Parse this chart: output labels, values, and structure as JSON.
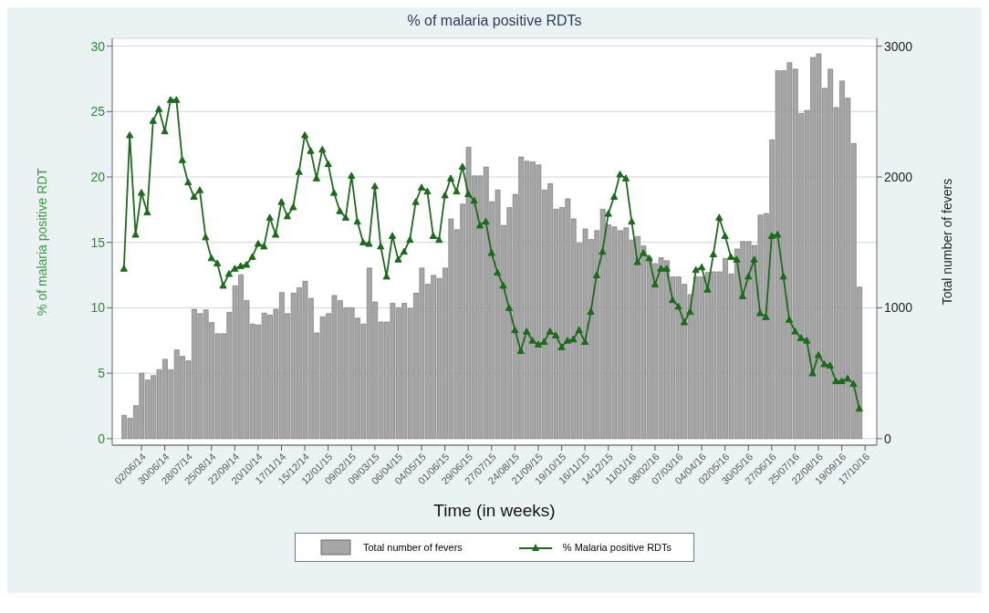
{
  "chart_data": {
    "type": "bar",
    "title": "% of malaria positive RDTs",
    "xlabel": "Time (in weeks)",
    "ylabel": "% of malaria positive RDT",
    "y2label": "Total number of fevers",
    "x": [
      "2014-05-12",
      "2014-05-19",
      "2014-05-26",
      "2014-06-02",
      "2014-06-09",
      "2014-06-16",
      "2014-06-23",
      "2014-06-30",
      "2014-07-07",
      "2014-07-14",
      "2014-07-21",
      "2014-07-28",
      "2014-08-04",
      "2014-08-11",
      "2014-08-18",
      "2014-08-25",
      "2014-09-01",
      "2014-09-08",
      "2014-09-15",
      "2014-09-22",
      "2014-09-29",
      "2014-10-06",
      "2014-10-13",
      "2014-10-20",
      "2014-10-27",
      "2014-11-03",
      "2014-11-10",
      "2014-11-17",
      "2014-11-24",
      "2014-12-01",
      "2014-12-08",
      "2014-12-15",
      "2014-12-22",
      "2014-12-29",
      "2015-01-05",
      "2015-01-12",
      "2015-01-19",
      "2015-01-26",
      "2015-02-02",
      "2015-02-09",
      "2015-02-16",
      "2015-02-23",
      "2015-03-02",
      "2015-03-09",
      "2015-03-16",
      "2015-03-23",
      "2015-03-30",
      "2015-04-06",
      "2015-04-13",
      "2015-04-20",
      "2015-04-27",
      "2015-05-04",
      "2015-05-11",
      "2015-05-18",
      "2015-05-25",
      "2015-06-01",
      "2015-06-08",
      "2015-06-15",
      "2015-06-22",
      "2015-06-29",
      "2015-07-06",
      "2015-07-13",
      "2015-07-20",
      "2015-07-27",
      "2015-08-03",
      "2015-08-10",
      "2015-08-17",
      "2015-08-24",
      "2015-08-31",
      "2015-09-07",
      "2015-09-14",
      "2015-09-21",
      "2015-09-28",
      "2015-10-05",
      "2015-10-12",
      "2015-10-19",
      "2015-10-26",
      "2015-11-02",
      "2015-11-09",
      "2015-11-16",
      "2015-11-23",
      "2015-11-30",
      "2015-12-07",
      "2015-12-14",
      "2015-12-21",
      "2015-12-28",
      "2016-01-04",
      "2016-01-11",
      "2016-01-18",
      "2016-01-25",
      "2016-02-01",
      "2016-02-08",
      "2016-02-15",
      "2016-02-22",
      "2016-02-29",
      "2016-03-07",
      "2016-03-14",
      "2016-03-21",
      "2016-03-28",
      "2016-04-04",
      "2016-04-11",
      "2016-04-18",
      "2016-04-25",
      "2016-05-02",
      "2016-05-09",
      "2016-05-16",
      "2016-05-23",
      "2016-05-30",
      "2016-06-06",
      "2016-06-13",
      "2016-06-20",
      "2016-06-27",
      "2016-07-04",
      "2016-07-11",
      "2016-07-18",
      "2016-07-25",
      "2016-08-01",
      "2016-08-08",
      "2016-08-15",
      "2016-08-22",
      "2016-08-29",
      "2016-09-05",
      "2016-09-12",
      "2016-09-19",
      "2016-09-26",
      "2016-10-03",
      "2016-10-10"
    ],
    "series": [
      {
        "name": "Total number of fevers",
        "axis": "y2",
        "color": "#a6a6a6",
        "values": [
          178,
          156,
          252,
          500,
          448,
          482,
          527,
          606,
          527,
          678,
          629,
          595,
          989,
          955,
          984,
          887,
          802,
          802,
          966,
          1169,
          1252,
          1056,
          876,
          869,
          959,
          944,
          989,
          1117,
          955,
          1112,
          1153,
          1203,
          1072,
          808,
          932,
          955,
          1094,
          1056,
          1000,
          1000,
          921,
          876,
          1304,
          1045,
          892,
          892,
          1034,
          1000,
          1034,
          995,
          1112,
          1304,
          1180,
          1248,
          1225,
          1304,
          1680,
          1597,
          1793,
          2227,
          2009,
          2009,
          2076,
          1811,
          1901,
          1630,
          1766,
          1867,
          2153,
          2121,
          2115,
          2092,
          1901,
          1950,
          1754,
          1766,
          1833,
          1680,
          1495,
          1603,
          1522,
          1590,
          1754,
          1635,
          1619,
          1590,
          1612,
          1518,
          1545,
          1473,
          1383,
          1338,
          1383,
          1360,
          1236,
          1236,
          1180,
          1101,
          1236,
          1236,
          1270,
          1275,
          1275,
          1378,
          1259,
          1450,
          1507,
          1507,
          1477,
          1709,
          1721,
          2284,
          2813,
          2813,
          2874,
          2824,
          2486,
          2509,
          2914,
          2941,
          2678,
          2824,
          2531,
          2734,
          2603,
          2256,
          1158
        ]
      },
      {
        "name": "% Malaria positive RDTs",
        "type": "line",
        "axis": "y",
        "color": "#1b6b1b",
        "marker": "triangle",
        "line_style": "solid",
        "values": [
          13.0,
          23.2,
          15.6,
          18.8,
          17.3,
          24.3,
          25.2,
          23.5,
          25.9,
          25.9,
          21.3,
          19.6,
          18.5,
          19.0,
          15.4,
          13.8,
          13.4,
          11.7,
          12.6,
          13.0,
          13.2,
          13.3,
          13.9,
          14.9,
          14.7,
          16.9,
          15.6,
          18.1,
          17.0,
          17.7,
          20.4,
          23.2,
          22.0,
          19.9,
          22.1,
          21.0,
          18.8,
          17.4,
          16.9,
          20.1,
          16.6,
          15.0,
          14.9,
          19.3,
          14.7,
          12.4,
          15.5,
          13.7,
          14.3,
          15.2,
          18.1,
          19.2,
          18.9,
          15.5,
          15.2,
          18.6,
          19.9,
          18.9,
          20.8,
          18.7,
          18.2,
          16.3,
          16.6,
          14.2,
          12.7,
          11.7,
          10.0,
          8.3,
          6.7,
          8.2,
          7.5,
          7.2,
          7.4,
          8.2,
          7.9,
          7.0,
          7.5,
          7.6,
          8.3,
          7.4,
          9.7,
          12.5,
          14.3,
          17.2,
          18.5,
          20.2,
          19.9,
          16.6,
          13.5,
          14.2,
          13.8,
          11.8,
          13.0,
          13.0,
          10.6,
          10.1,
          8.9,
          9.7,
          12.9,
          13.1,
          11.4,
          14.1,
          16.9,
          15.5,
          13.9,
          13.7,
          10.9,
          12.4,
          13.7,
          9.6,
          9.3,
          15.5,
          15.6,
          12.4,
          9.1,
          8.2,
          7.7,
          7.5,
          5.0,
          6.4,
          5.7,
          5.6,
          4.4,
          4.4,
          4.6,
          4.2,
          2.3
        ]
      }
    ],
    "xlim": [
      "2014-04-28",
      "2016-10-31"
    ],
    "xticks": [
      {
        "value": "2014-06-02",
        "label": "02/06/14"
      },
      {
        "value": "2014-06-30",
        "label": "30/06/14"
      },
      {
        "value": "2014-07-28",
        "label": "28/07/14"
      },
      {
        "value": "2014-08-25",
        "label": "25/08/14"
      },
      {
        "value": "2014-09-22",
        "label": "22/09/14"
      },
      {
        "value": "2014-10-20",
        "label": "20/10/14"
      },
      {
        "value": "2014-11-17",
        "label": "17/11/14"
      },
      {
        "value": "2014-12-15",
        "label": "15/12/14"
      },
      {
        "value": "2015-01-12",
        "label": "12/01/15"
      },
      {
        "value": "2015-02-09",
        "label": "09/02/15"
      },
      {
        "value": "2015-03-09",
        "label": "09/03/15"
      },
      {
        "value": "2015-04-06",
        "label": "06/04/15"
      },
      {
        "value": "2015-05-04",
        "label": "04/05/15"
      },
      {
        "value": "2015-06-01",
        "label": "01/06/15"
      },
      {
        "value": "2015-06-29",
        "label": "29/06/15"
      },
      {
        "value": "2015-07-27",
        "label": "27/07/15"
      },
      {
        "value": "2015-08-24",
        "label": "24/08/15"
      },
      {
        "value": "2015-09-21",
        "label": "21/09/15"
      },
      {
        "value": "2015-10-19",
        "label": "19/10/15"
      },
      {
        "value": "2015-11-16",
        "label": "16/11/15"
      },
      {
        "value": "2015-12-14",
        "label": "14/12/15"
      },
      {
        "value": "2016-01-11",
        "label": "11/01/16"
      },
      {
        "value": "2016-02-08",
        "label": "08/02/16"
      },
      {
        "value": "2016-03-07",
        "label": "07/03/16"
      },
      {
        "value": "2016-04-04",
        "label": "04/04/16"
      },
      {
        "value": "2016-05-02",
        "label": "02/05/16"
      },
      {
        "value": "2016-05-30",
        "label": "30/05/16"
      },
      {
        "value": "2016-06-27",
        "label": "27/06/16"
      },
      {
        "value": "2016-07-25",
        "label": "25/07/16"
      },
      {
        "value": "2016-08-22",
        "label": "22/08/16"
      },
      {
        "value": "2016-09-19",
        "label": "19/09/16"
      },
      {
        "value": "2016-10-17",
        "label": "17/10/16"
      }
    ],
    "ylim": [
      -0.5,
      30.6
    ],
    "yticks": [
      0,
      5,
      10,
      15,
      20,
      25,
      30
    ],
    "y2lim": [
      -50,
      3060
    ],
    "y2ticks": [
      0,
      1000,
      2000,
      3000
    ],
    "grid": "y",
    "legend": "bottom"
  }
}
